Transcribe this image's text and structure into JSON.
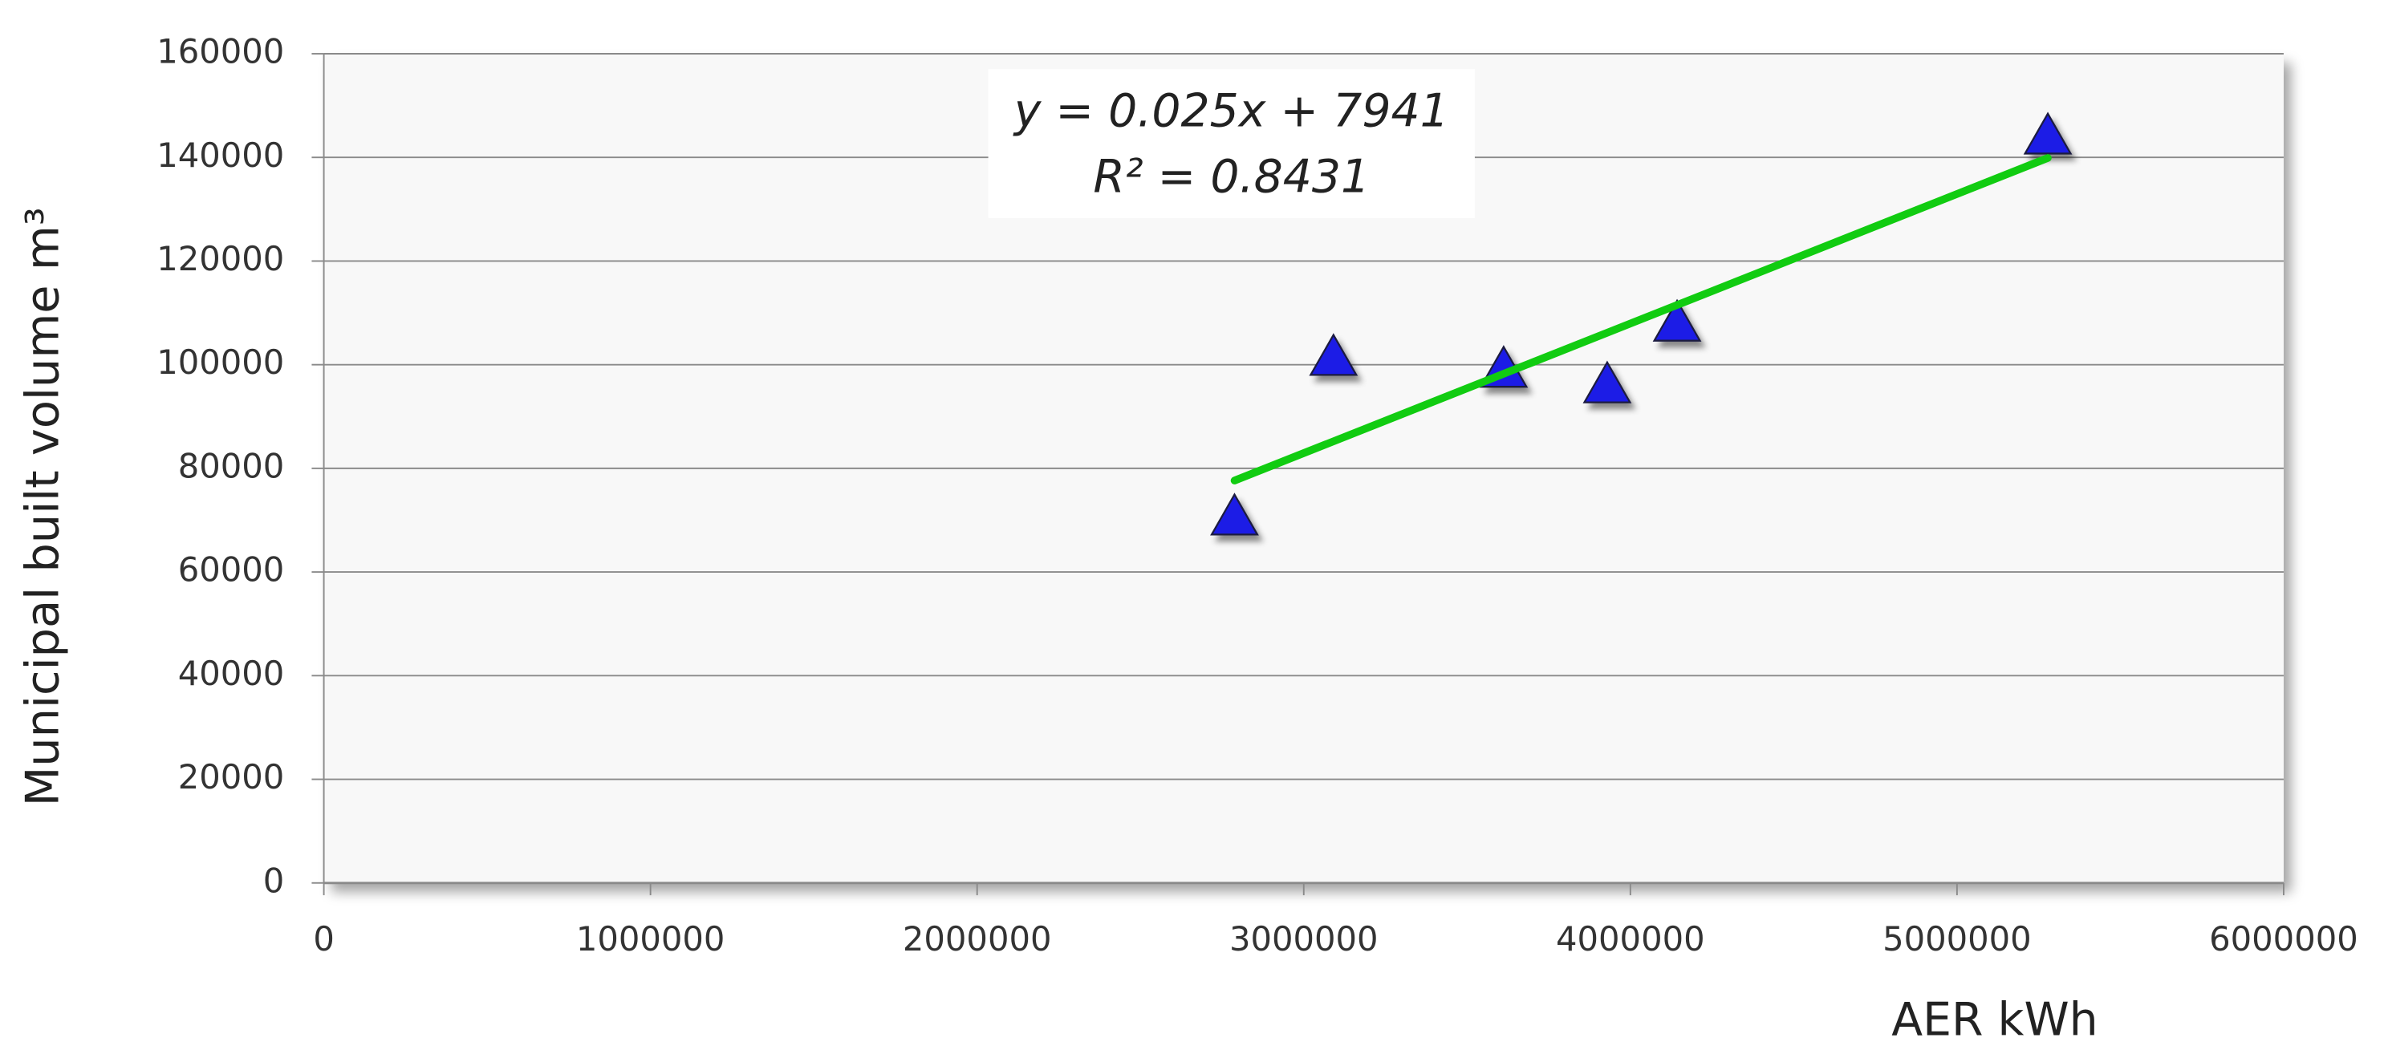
{
  "chart_data": {
    "type": "scatter",
    "x_label": "AER kWh",
    "y_label": "Municipal built volume m³",
    "x": [
      2788000,
      3091000,
      3612000,
      3929000,
      4143000,
      5278000
    ],
    "values": [
      70200,
      101000,
      98700,
      95700,
      107600,
      143700
    ],
    "color": "#1c1ce6",
    "trendline": {
      "color": "#11cc11",
      "x": [
        2788000,
        5278000
      ],
      "values": [
        77641,
        139891
      ]
    },
    "equation": [
      "y = 0.025x + 7941",
      "R² = 0.8431"
    ],
    "xlim": [
      0,
      6000000
    ],
    "xticks": [
      0,
      1000000,
      2000000,
      3000000,
      4000000,
      5000000,
      6000000
    ],
    "ylim": [
      0,
      160000
    ],
    "yticks": [
      0,
      20000,
      40000,
      60000,
      80000,
      100000,
      120000,
      140000,
      160000
    ],
    "grid": true
  }
}
